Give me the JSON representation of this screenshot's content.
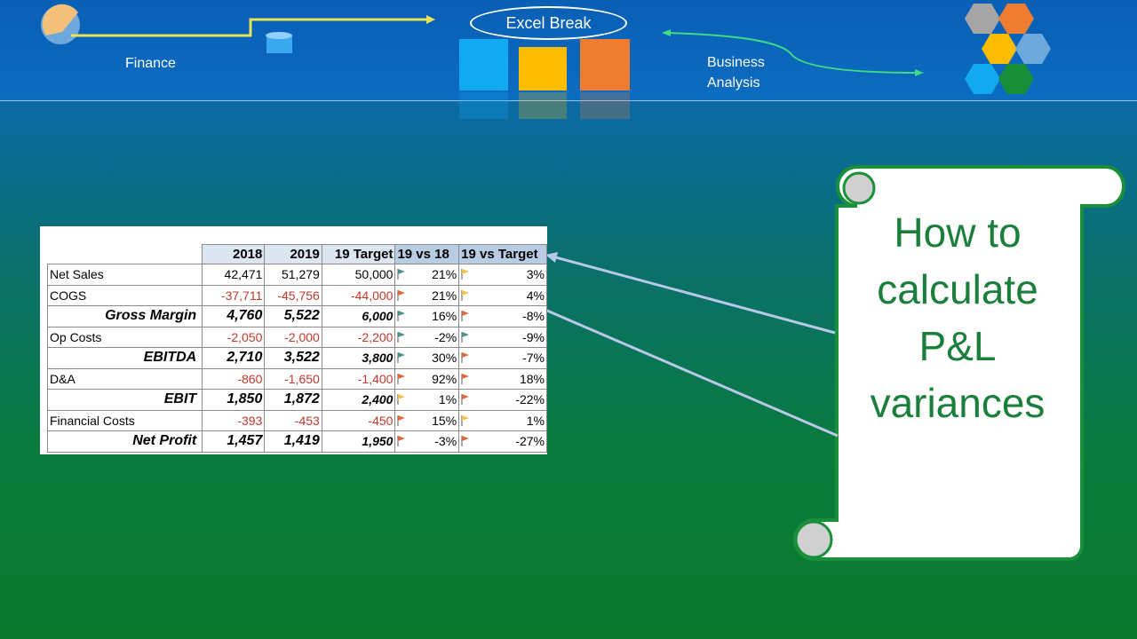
{
  "header": {
    "left_label": "Finance",
    "center_title": "Excel Break",
    "right_label": "Business Analysis"
  },
  "table": {
    "columns": [
      "2018",
      "2019",
      "19 Target",
      "19 vs 18",
      "19 vs Target"
    ],
    "flag_colors": {
      "good": "#4a8f8a",
      "bad": "#e0663a",
      "neutral": "#f2c14e"
    },
    "rows": [
      {
        "label": "Net Sales",
        "bold": false,
        "cells": [
          "42,471",
          "51,279",
          "50,000",
          "21%",
          "3%"
        ],
        "flags": [
          "good",
          "neutral"
        ]
      },
      {
        "label": "COGS",
        "bold": false,
        "cells": [
          "-37,711",
          "-45,756",
          "-44,000",
          "21%",
          "4%"
        ],
        "flags": [
          "bad",
          "neutral"
        ]
      },
      {
        "label": "Gross Margin",
        "bold": true,
        "cells": [
          "4,760",
          "5,522",
          "6,000",
          "16%",
          "-8%"
        ],
        "flags": [
          "good",
          "bad"
        ]
      },
      {
        "label": "Op Costs",
        "bold": false,
        "cells": [
          "-2,050",
          "-2,000",
          "-2,200",
          "-2%",
          "-9%"
        ],
        "flags": [
          "good",
          "good"
        ]
      },
      {
        "label": "EBITDA",
        "bold": true,
        "cells": [
          "2,710",
          "3,522",
          "3,800",
          "30%",
          "-7%"
        ],
        "flags": [
          "good",
          "bad"
        ]
      },
      {
        "label": "D&A",
        "bold": false,
        "cells": [
          "-860",
          "-1,650",
          "-1,400",
          "92%",
          "18%"
        ],
        "flags": [
          "bad",
          "bad"
        ]
      },
      {
        "label": "EBIT",
        "bold": true,
        "cells": [
          "1,850",
          "1,872",
          "2,400",
          "1%",
          "-22%"
        ],
        "flags": [
          "neutral",
          "bad"
        ]
      },
      {
        "label": "Financial Costs",
        "bold": false,
        "cells": [
          "-393",
          "-453",
          "-450",
          "15%",
          "1%"
        ],
        "flags": [
          "bad",
          "neutral"
        ]
      },
      {
        "label": "Net Profit",
        "bold": true,
        "cells": [
          "1,457",
          "1,419",
          "1,950",
          "-3%",
          "-27%"
        ],
        "flags": [
          "bad",
          "bad"
        ]
      }
    ]
  },
  "callout": {
    "lines": [
      "How to",
      "calculate",
      "P&L",
      "variances"
    ]
  }
}
